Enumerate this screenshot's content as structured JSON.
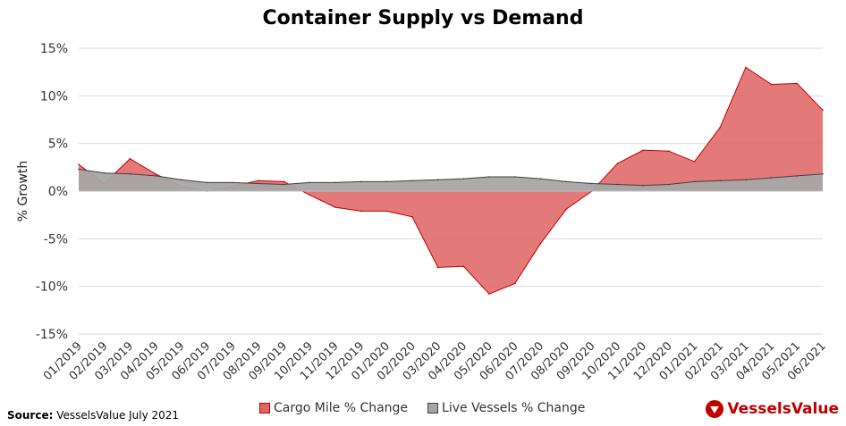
{
  "chart_data": {
    "type": "area",
    "title": "Container Supply vs Demand",
    "ylabel": "% Growth",
    "xlabel": "",
    "ylim": [
      -15,
      15
    ],
    "yticks": [
      "-15%",
      "-10%",
      "-5%",
      "0%",
      "5%",
      "10%",
      "15%"
    ],
    "ytick_values": [
      -15,
      -10,
      -5,
      0,
      5,
      10,
      15
    ],
    "categories": [
      "01/2019",
      "02/2019",
      "03/2019",
      "04/2019",
      "05/2019",
      "06/2019",
      "07/2019",
      "08/2019",
      "09/2019",
      "10/2019",
      "11/2019",
      "12/2019",
      "01/2020",
      "02/2020",
      "03/2020",
      "04/2020",
      "05/2020",
      "06/2020",
      "07/2020",
      "08/2020",
      "09/2020",
      "10/2020",
      "11/2020",
      "12/2020",
      "01/2021",
      "02/2021",
      "03/2021",
      "04/2021",
      "05/2021",
      "06/2021"
    ],
    "series": [
      {
        "name": "Cargo Mile % Change",
        "color": "#e06666",
        "stroke": "#c00000",
        "values": [
          2.8,
          0.8,
          3.4,
          1.8,
          0.5,
          0.0,
          0.5,
          1.1,
          1.0,
          -0.4,
          -1.7,
          -2.1,
          -2.1,
          -2.7,
          -8.0,
          -7.9,
          -10.8,
          -9.7,
          -5.5,
          -1.9,
          0.0,
          2.9,
          4.3,
          4.2,
          3.1,
          6.7,
          13.0,
          11.2,
          11.3,
          8.5
        ]
      },
      {
        "name": "Live Vessels % Change",
        "color": "#a6a6a6",
        "stroke": "#404040",
        "values": [
          2.3,
          1.9,
          1.8,
          1.6,
          1.2,
          0.9,
          0.9,
          0.8,
          0.7,
          0.9,
          0.9,
          1.0,
          1.0,
          1.1,
          1.2,
          1.3,
          1.5,
          1.5,
          1.3,
          1.0,
          0.8,
          0.7,
          0.6,
          0.7,
          1.0,
          1.1,
          1.2,
          1.4,
          1.6,
          1.8
        ]
      }
    ],
    "legend_position": "bottom",
    "grid": true,
    "grid_color": "#d9d9d9"
  },
  "source_label": "Source:",
  "source_text": "VesselsValue July 2021",
  "brand_name": "VesselsValue",
  "brand_color": "#c00000"
}
